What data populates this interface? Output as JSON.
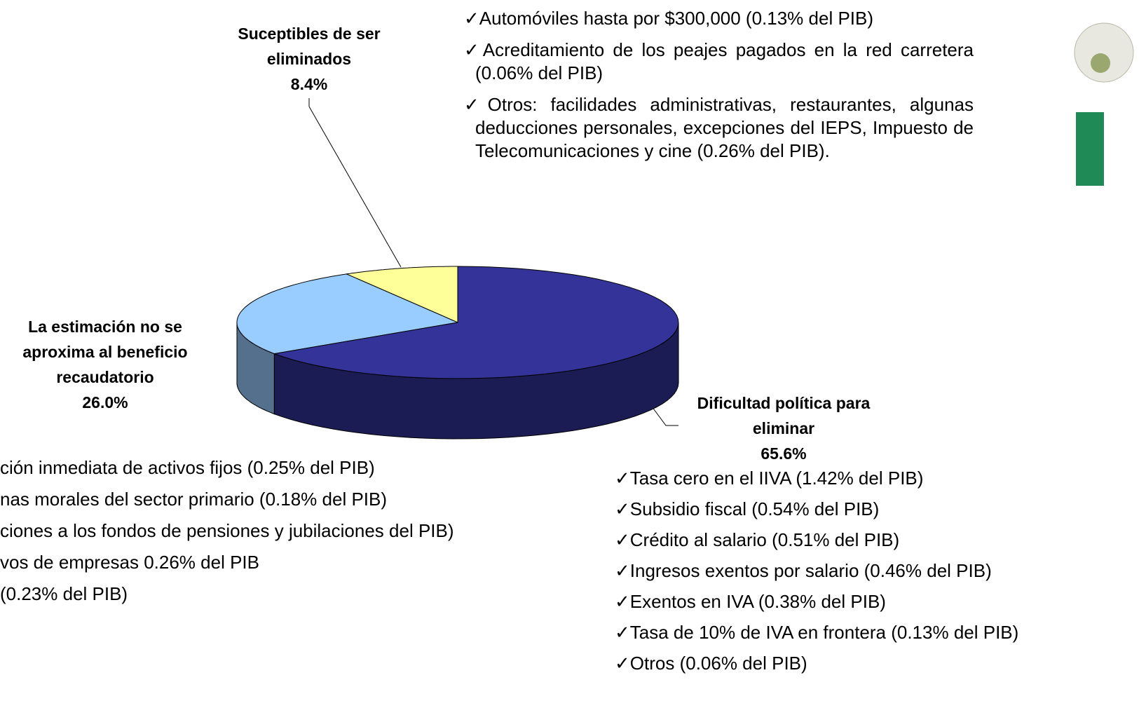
{
  "chart_data": {
    "type": "pie",
    "categories": [
      "Suceptibles de ser eliminados",
      "La estimación no se aproxima al beneficio recaudatorio",
      "Dificultad política para eliminar"
    ],
    "values": [
      8.4,
      26.0,
      65.6
    ],
    "value_labels": [
      "8.4%",
      "26.0%",
      "65.6%"
    ],
    "colors": [
      "#ffff99",
      "#99ccff",
      "#333399"
    ],
    "annotations": {
      "top": [
        "✓Automóviles hasta por $300,000 (0.13% del PIB)",
        "✓Acreditamiento de los peajes pagados en la red carretera (0.06% del PIB)",
        "✓Otros: facilidades administrativas, restaurantes, algunas deducciones personales, excepciones del IEPS, Impuesto de Telecomunicaciones  y cine (0.26% del PIB)."
      ],
      "bottom_left": [
        "ción inmediata de activos fijos (0.25% del PIB)",
        "nas morales del sector primario (0.18% del PIB)",
        "ciones a los fondos de pensiones y jubilaciones del PIB)",
        "vos de empresas 0.26% del PIB",
        "(0.23% del PIB)"
      ],
      "bottom_right": [
        "✓Tasa cero en el IIVA (1.42% del PIB)",
        "✓Subsidio fiscal (0.54% del PIB)",
        "✓Crédito al salario (0.51% del PIB)",
        "✓Ingresos exentos por salario (0.46% del PIB)",
        "✓Exentos en IVA  (0.38% del PIB)",
        "✓Tasa de 10% de IVA en frontera (0.13% del PIB)",
        "✓Otros (0.06% del PIB)"
      ]
    }
  }
}
